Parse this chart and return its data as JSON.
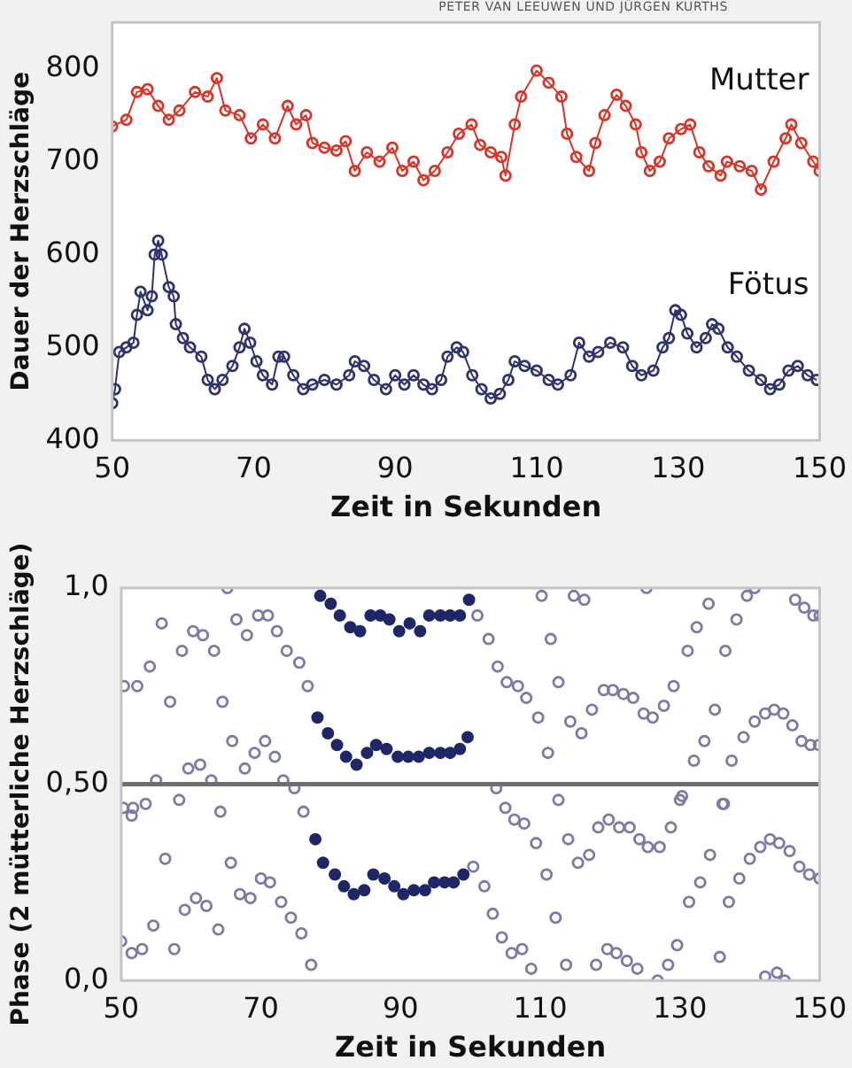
{
  "chart_data": [
    {
      "type": "line",
      "xlabel": "Zeit in Sekunden",
      "ylabel": "Dauer der Herzschläge",
      "annotations": [
        "PETER VAN LEEUWEN UND JÜRGEN KURTHS"
      ],
      "xlim": [
        50,
        150
      ],
      "xticks": [
        50,
        70,
        90,
        110,
        130,
        150
      ],
      "ylim": [
        400,
        850
      ],
      "yticks": [
        400,
        500,
        600,
        700,
        800
      ],
      "grid": false,
      "legend": false,
      "marker": "circle",
      "line_style": "solid",
      "series": [
        {
          "name": "Mutter",
          "color": "#d8352a",
          "x": [
            50,
            52,
            53.5,
            55,
            56.5,
            58,
            59.5,
            61.7,
            63.5,
            64.8,
            66,
            68,
            69.6,
            71.3,
            73,
            74.8,
            76,
            77.4,
            78.3,
            80,
            81.7,
            83,
            84.3,
            86,
            87.8,
            89.6,
            91,
            92.6,
            94,
            95.6,
            97.4,
            99,
            100.8,
            102,
            103.5,
            105,
            105.6,
            106.9,
            107.8,
            110,
            111.7,
            113.5,
            114.3,
            115.6,
            117.4,
            118.3,
            119.6,
            121.3,
            122.6,
            124,
            124.8,
            126,
            127.4,
            128.7,
            130.4,
            131.7,
            133,
            134.3,
            136,
            136.9,
            138.7,
            140.4,
            141.7,
            143.5,
            145.2,
            146,
            147.4,
            149.1,
            150
          ],
          "values": [
            738,
            745,
            775,
            778,
            760,
            745,
            755,
            775,
            770,
            790,
            755,
            750,
            725,
            740,
            725,
            760,
            740,
            750,
            720,
            715,
            712,
            722,
            690,
            710,
            700,
            715,
            690,
            700,
            680,
            690,
            710,
            730,
            740,
            718,
            710,
            705,
            685,
            740,
            770,
            798,
            785,
            770,
            730,
            705,
            690,
            720,
            750,
            772,
            760,
            740,
            710,
            690,
            700,
            725,
            735,
            740,
            710,
            695,
            685,
            700,
            695,
            690,
            670,
            700,
            725,
            740,
            720,
            700,
            690
          ]
        },
        {
          "name": "Fötus",
          "color": "#2e336e",
          "x": [
            50,
            50.4,
            51,
            52,
            53,
            53.5,
            54,
            55,
            55.6,
            56,
            56.5,
            57,
            58,
            58.7,
            59,
            60,
            61,
            62.6,
            63.5,
            64.5,
            65.6,
            67,
            68,
            68.7,
            69.5,
            70.4,
            71.3,
            72.6,
            73.5,
            74.3,
            75.6,
            77,
            78.3,
            80,
            81.7,
            83.5,
            84.3,
            85.6,
            87,
            88.7,
            90,
            91.3,
            92.6,
            94,
            95.2,
            96.5,
            97.4,
            98.7,
            99.6,
            100.9,
            102.2,
            103.5,
            104.8,
            106,
            106.9,
            108.3,
            110,
            111.7,
            113,
            114.8,
            116,
            117.4,
            118.7,
            120.4,
            122.2,
            123.5,
            124.8,
            126.5,
            127.8,
            128.7,
            129.6,
            130.4,
            131.3,
            132.6,
            133.9,
            134.8,
            135.7,
            137,
            138.3,
            140,
            141.7,
            143,
            144.3,
            145.6,
            146.9,
            148.3,
            149.6
          ],
          "values": [
            440,
            455,
            495,
            500,
            505,
            535,
            560,
            540,
            555,
            600,
            615,
            600,
            565,
            555,
            525,
            510,
            500,
            490,
            465,
            455,
            465,
            480,
            500,
            520,
            505,
            485,
            470,
            460,
            490,
            490,
            470,
            455,
            460,
            465,
            460,
            470,
            485,
            480,
            465,
            455,
            470,
            460,
            470,
            460,
            455,
            465,
            490,
            500,
            495,
            470,
            455,
            445,
            450,
            465,
            485,
            480,
            475,
            465,
            460,
            470,
            505,
            490,
            495,
            505,
            500,
            480,
            470,
            475,
            500,
            510,
            540,
            535,
            515,
            500,
            510,
            525,
            520,
            500,
            490,
            475,
            465,
            455,
            460,
            475,
            480,
            470,
            465
          ]
        }
      ]
    },
    {
      "type": "scatter",
      "xlabel": "Zeit in Sekunden",
      "ylabel": "Phase (2 mütterliche Herzschläge)",
      "xlim": [
        50,
        150
      ],
      "xticks": [
        50,
        70,
        90,
        110,
        130,
        150
      ],
      "ylim": [
        0,
        1
      ],
      "yticks": [
        {
          "value": 0,
          "label": "0,0"
        },
        {
          "value": 0.5,
          "label": "0,50"
        },
        {
          "value": 1,
          "label": "1,0"
        }
      ],
      "grid": false,
      "legend": false,
      "marker": "circle",
      "ref_lines": [
        {
          "axis": "y",
          "value": 0.5,
          "color": "#6e6e6e"
        }
      ],
      "series": [
        {
          "color": "#7b7ba6",
          "x": [
            50.4,
            52.3,
            54.1,
            55.8,
            57,
            58.7,
            60.3,
            61.7,
            63.3,
            64.5,
            65.2,
            65.9,
            66.5,
            68,
            67.7,
            69.6,
            69.1,
            71,
            70.6,
            72.3,
            72,
            73.7,
            75.5,
            76.7,
            59.6,
            61.3,
            62.9,
            55,
            58.3,
            53.5,
            51.5,
            64.2,
            73.2,
            74.8,
            76.1,
            50.3,
            51.7,
            50,
            51.5,
            53,
            54.6,
            56.3,
            57.6,
            59.1,
            60.7,
            62.2,
            63.9,
            65.7,
            67,
            68.5,
            70,
            71.3,
            72.9,
            74.3,
            75.8,
            77.2,
            101,
            102.6,
            103.9,
            105.2,
            106.8,
            108,
            109.7,
            110.2,
            111.5,
            111.1,
            112.6,
            112.6,
            114.8,
            116.3,
            114.3,
            115.9,
            117.4,
            119.1,
            120.4,
            121.9,
            123.3,
            124.8,
            126.1,
            125.2,
            127.7,
            129.1,
            130,
            131.1,
            132,
            132.4,
            133.5,
            134.1,
            135,
            136.3,
            136.5,
            137.4,
            138.1,
            139.1,
            139.6,
            140.7,
            140.7,
            142.2,
            143.5,
            144.8,
            146.1,
            147.4,
            148.7,
            149.9,
            146.5,
            147.8,
            149.1,
            150,
            100.4,
            102,
            103.2,
            104.5,
            105.9,
            107.4,
            108.7,
            103.7,
            105,
            106.3,
            107.7,
            109.4,
            110.9,
            112.2,
            113.7,
            114,
            115.4,
            117,
            118,
            118.3,
            119.6,
            119.8,
            120.9,
            121.3,
            122.4,
            122.8,
            123.9,
            124.2,
            125.4,
            126.8,
            127.1,
            128.3,
            128.7,
            129.6,
            130.3,
            131.3,
            132.9,
            134.3,
            135.7,
            136.1,
            137,
            138.5,
            140,
            141.5,
            142.2,
            142.9,
            143.9,
            144.2,
            145,
            145.7,
            147.1,
            148.5,
            150
          ],
          "values": [
            0.75,
            0.75,
            0.8,
            0.91,
            0.71,
            0.84,
            0.89,
            0.88,
            0.84,
            0.71,
            1,
            0.61,
            0.92,
            0.88,
            0.54,
            0.93,
            0.58,
            0.93,
            0.61,
            0.89,
            0.57,
            0.84,
            0.81,
            0.75,
            0.54,
            0.55,
            0.51,
            0.51,
            0.46,
            0.45,
            0.42,
            0.43,
            0.51,
            0.49,
            0.43,
            0.44,
            0.44,
            0.1,
            0.07,
            0.08,
            0.14,
            0.31,
            0.08,
            0.18,
            0.21,
            0.19,
            0.13,
            0.3,
            0.22,
            0.21,
            0.26,
            0.25,
            0.2,
            0.16,
            0.12,
            0.04,
            0.93,
            0.87,
            0.8,
            0.76,
            0.75,
            0.72,
            0.67,
            0.98,
            0.87,
            0.58,
            0.76,
            0.46,
            0.98,
            0.97,
            0.66,
            0.63,
            0.69,
            0.74,
            0.74,
            0.73,
            0.72,
            0.68,
            0.67,
            1,
            0.7,
            0.75,
            0.46,
            0.84,
            0.56,
            0.9,
            0.61,
            0.96,
            0.69,
            0.45,
            0.84,
            0.56,
            0.92,
            0.62,
            0.98,
            1,
            0.66,
            0.68,
            0.69,
            0.68,
            0.65,
            0.61,
            0.6,
            0.6,
            0.97,
            0.95,
            0.93,
            0.93,
            0.29,
            0.24,
            0.17,
            0.11,
            0.07,
            0.08,
            0.03,
            0.49,
            0.44,
            0.41,
            0.4,
            0.35,
            0.27,
            0.16,
            0.04,
            0.36,
            0.3,
            0.32,
            0.04,
            0.39,
            0.08,
            0.41,
            0.07,
            0.39,
            0.05,
            0.39,
            0.03,
            0.36,
            0.34,
            0,
            0.34,
            0.04,
            0.39,
            0.09,
            0.47,
            0.2,
            0.25,
            0.32,
            0.06,
            0.45,
            0.2,
            0.26,
            0.31,
            0.34,
            0.01,
            0.36,
            0.02,
            0.35,
            0,
            0.33,
            0.29,
            0.27,
            0.26
          ]
        },
        {
          "color": "#1f2767",
          "x": [
            78.5,
            80,
            81.3,
            82.8,
            84.2,
            85.7,
            87.1,
            88.4,
            89.8,
            91.3,
            92.8,
            94.1,
            95.7,
            97.1,
            98.5,
            99.8,
            78.1,
            79.6,
            80.9,
            82.2,
            83.7,
            85.2,
            86.5,
            88,
            89.6,
            91.1,
            92.6,
            94.1,
            95.7,
            97.1,
            98.5,
            99.6,
            77.8,
            78.9,
            80.6,
            81.9,
            83.3,
            84.8,
            86.1,
            87.7,
            89.1,
            90.4,
            91.9,
            93.5,
            94.8,
            96.3,
            97.6,
            99
          ],
          "values": [
            0.98,
            0.96,
            0.93,
            0.9,
            0.89,
            0.93,
            0.93,
            0.92,
            0.89,
            0.91,
            0.89,
            0.93,
            0.93,
            0.93,
            0.93,
            0.97,
            0.67,
            0.63,
            0.6,
            0.57,
            0.55,
            0.58,
            0.6,
            0.59,
            0.57,
            0.57,
            0.57,
            0.58,
            0.58,
            0.58,
            0.59,
            0.62,
            0.36,
            0.3,
            0.27,
            0.24,
            0.22,
            0.23,
            0.27,
            0.26,
            0.24,
            0.22,
            0.23,
            0.23,
            0.25,
            0.25,
            0.25,
            0.27
          ]
        }
      ]
    }
  ]
}
